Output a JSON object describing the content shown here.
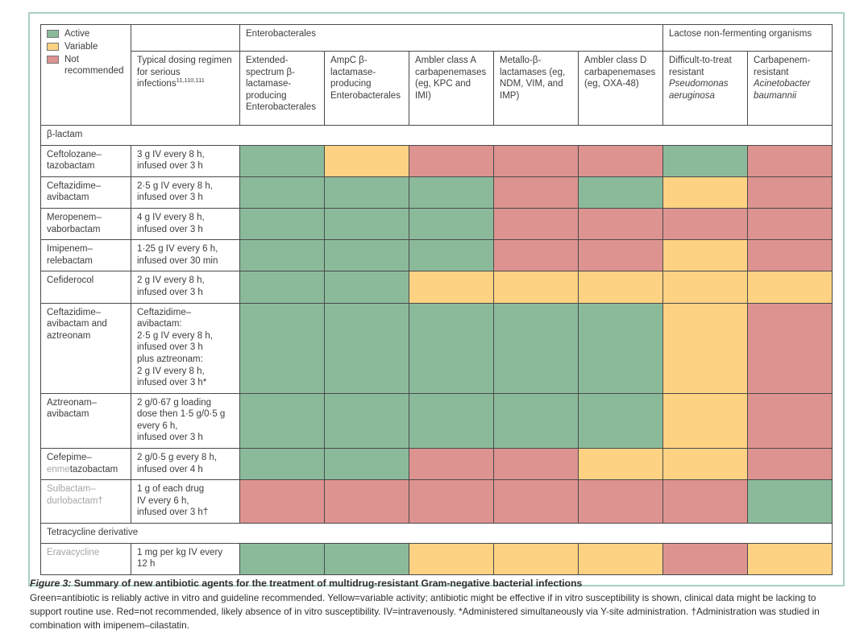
{
  "colors": {
    "active": "#8bba9b",
    "variable": "#fdd283",
    "not_recommended": "#dd9390",
    "frame_border": "#aacfc6",
    "grid_border": "#4a4a4a",
    "muted_text": "#a5a5a5"
  },
  "legend": {
    "items": [
      {
        "key": "active",
        "label": "Active"
      },
      {
        "key": "variable",
        "label": "Variable"
      },
      {
        "key": "not_recommended",
        "label": "Not recommended"
      }
    ]
  },
  "header": {
    "groups": [
      {
        "label": "Enterobacterales",
        "span": 5
      },
      {
        "label": "Lactose non-fermenting organisms",
        "span": 2
      }
    ],
    "dosing": {
      "text": "Typical dosing regimen for serious infections",
      "superscript": "11,110,111"
    },
    "columns": [
      {
        "text": "Extended-spectrum β-lactamase-producing Enterobacterales"
      },
      {
        "text": "AmpC β-lactamase-producing Enterobacterales"
      },
      {
        "text": "Ambler class A carbapenemases (eg, KPC and IMI)"
      },
      {
        "text": "Metallo-β-lactamases (eg, NDM, VIM, and IMP)"
      },
      {
        "text": "Ambler class D carbapenemases (eg, OXA-48)"
      },
      {
        "text": "Difficult-to-treat resistant ",
        "italic": "Pseudomonas aeruginosa"
      },
      {
        "text": "Carbapenem-resistant ",
        "italic": "Acinetobacter baumannii"
      }
    ]
  },
  "table": {
    "sections": [
      {
        "title": "β-lactam",
        "rows": [
          {
            "name_parts": [
              {
                "text": "Ceftolozane–\ntazobactam"
              }
            ],
            "dose_lines": [
              "3 g IV every 8 h,",
              "infused over 3 h"
            ],
            "cells": [
              "G",
              "V",
              "R",
              "R",
              "R",
              "G",
              "R"
            ]
          },
          {
            "name_parts": [
              {
                "text": "Ceftazidime–\navibactam"
              }
            ],
            "dose_lines": [
              "2·5 g IV every 8 h,",
              "infused over 3 h"
            ],
            "cells": [
              "G",
              "G",
              "G",
              "R",
              "G",
              "V",
              "R"
            ]
          },
          {
            "name_parts": [
              {
                "text": "Meropenem–\nvaborbactam"
              }
            ],
            "dose_lines": [
              "4 g IV every 8 h,",
              "infused over 3 h"
            ],
            "cells": [
              "G",
              "G",
              "G",
              "R",
              "R",
              "R",
              "R"
            ]
          },
          {
            "name_parts": [
              {
                "text": "Imipenem–\nrelebactam"
              }
            ],
            "dose_lines": [
              "1·25 g IV every 6 h,",
              "infused over 30 min"
            ],
            "cells": [
              "G",
              "G",
              "G",
              "R",
              "R",
              "V",
              "R"
            ]
          },
          {
            "name_parts": [
              {
                "text": "Cefiderocol"
              }
            ],
            "dose_lines": [
              "2 g IV every 8 h,",
              "infused over 3 h"
            ],
            "cells": [
              "G",
              "G",
              "V",
              "V",
              "V",
              "V",
              "V"
            ]
          },
          {
            "name_parts": [
              {
                "text": "Ceftazidime–\navibactam and\naztreonam"
              }
            ],
            "dose_lines": [
              "Ceftazidime–avibactam:",
              "2·5 g IV every 8 h,",
              "infused over 3 h",
              "plus aztreonam:",
              "2 g IV every 8 h,",
              "infused over 3 h*"
            ],
            "cells": [
              "G",
              "G",
              "G",
              "G",
              "G",
              "V",
              "R"
            ]
          },
          {
            "name_parts": [
              {
                "text": "Aztreonam–\navibactam"
              }
            ],
            "dose_lines": [
              "2 g/0·67 g loading",
              "dose then 1·5 g/0·5 g",
              "every 6 h,",
              "infused over 3 h"
            ],
            "cells": [
              "G",
              "G",
              "G",
              "G",
              "G",
              "V",
              "R"
            ]
          },
          {
            "name_parts": [
              {
                "text": "Cefepime–\n"
              },
              {
                "text": "enme",
                "muted": true
              },
              {
                "text": "tazobactam"
              }
            ],
            "dose_lines": [
              "2 g/0·5 g every 8 h,",
              "infused over 4 h"
            ],
            "cells": [
              "G",
              "G",
              "R",
              "R",
              "V",
              "V",
              "R"
            ]
          },
          {
            "name_parts": [
              {
                "text": "Sulbactam–\ndurlobactam†",
                "muted": true
              }
            ],
            "dose_lines": [
              "1 g of each drug",
              "IV every 6 h,",
              "infused over 3 h†"
            ],
            "cells": [
              "R",
              "R",
              "R",
              "R",
              "R",
              "R",
              "G"
            ]
          }
        ]
      },
      {
        "title": "Tetracycline derivative",
        "rows": [
          {
            "name_parts": [
              {
                "text": "Eravacycline",
                "muted": true
              }
            ],
            "dose_lines": [
              "1 mg per kg IV every",
              "12 h"
            ],
            "cells": [
              "G",
              "G",
              "V",
              "V",
              "V",
              "R",
              "V"
            ]
          }
        ]
      }
    ]
  },
  "caption": {
    "label": "Figure 3:",
    "title": "Summary of new antibiotic agents for the treatment of multidrug-resistant Gram-negative bacterial infections",
    "body": "Green=antibiotic is reliably active in vitro and guideline recommended. Yellow=variable activity; antibiotic might be effective if in vitro susceptibility is shown, clinical data might be lacking to support routine use. Red=not recommended, likely absence of in vitro susceptibility. IV=intravenously. *Administered simultaneously via Y-site administration. †Administration was studied in combination with imipenem–cilastatin."
  }
}
